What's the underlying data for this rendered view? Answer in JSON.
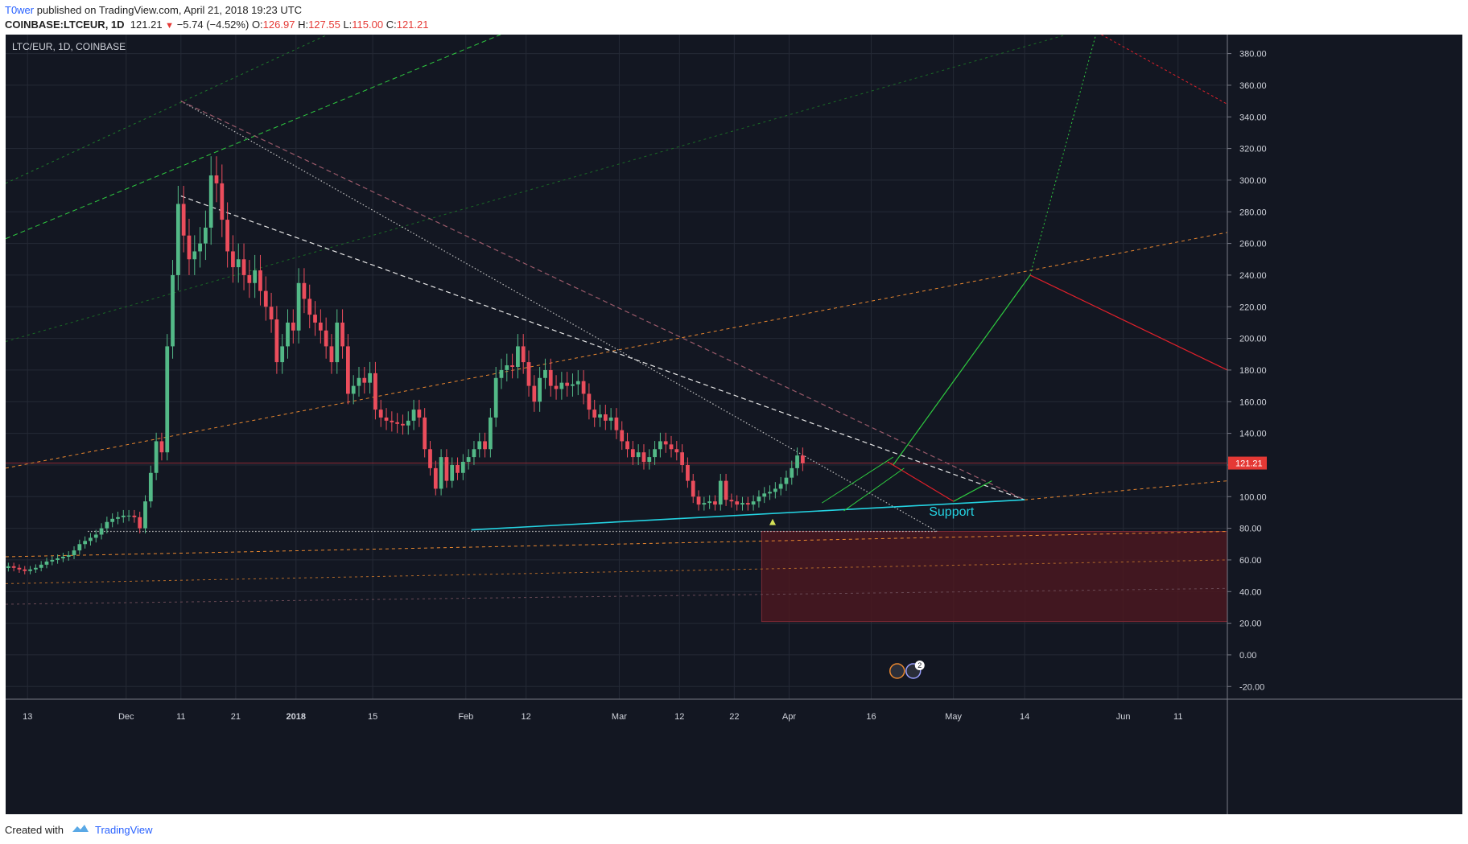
{
  "header": {
    "author": "T0wer",
    "published_text": "published on TradingView.com, April 21, 2018 19:23 UTC",
    "symbol": "COINBASE:LTCEUR, 1D",
    "last": "121.21",
    "change": "−5.74 (−4.52%)",
    "open_label": "O:",
    "open": "126.97",
    "high_label": "H:",
    "high": "127.55",
    "low_label": "L:",
    "low": "115.00",
    "close_label": "C:",
    "close": "121.21"
  },
  "legend": {
    "title": "LTC/EUR, 1D, COINBASE"
  },
  "colors": {
    "background": "#131722",
    "grid": "#252a36",
    "up": "#53b987",
    "down": "#eb4d5c",
    "support": "#24d3e2",
    "green_projection": "#2ecc40",
    "red_projection": "#e0202a",
    "orange_channel": "#e9872f",
    "zone": "#4a1820"
  },
  "annotations": {
    "support_label": "Support",
    "price_tag": "121.21",
    "event_badge_count": "2"
  },
  "footer": {
    "created_with": "Created with",
    "brand": "TradingView"
  },
  "chart_data": {
    "type": "candlestick",
    "symbol": "LTC/EUR",
    "timeframe": "1D",
    "exchange": "COINBASE",
    "x_ticks": [
      {
        "label": "13",
        "date": "2017-11-13"
      },
      {
        "label": "Dec",
        "date": "2017-12-01"
      },
      {
        "label": "11",
        "date": "2017-12-11"
      },
      {
        "label": "21",
        "date": "2017-12-21"
      },
      {
        "label": "2018",
        "date": "2018-01-01"
      },
      {
        "label": "15",
        "date": "2018-01-15"
      },
      {
        "label": "Feb",
        "date": "2018-02-01"
      },
      {
        "label": "12",
        "date": "2018-02-12"
      },
      {
        "label": "Mar",
        "date": "2018-03-01"
      },
      {
        "label": "12",
        "date": "2018-03-12"
      },
      {
        "label": "22",
        "date": "2018-03-22"
      },
      {
        "label": "Apr",
        "date": "2018-04-01"
      },
      {
        "label": "16",
        "date": "2018-04-16"
      },
      {
        "label": "May",
        "date": "2018-05-01"
      },
      {
        "label": "14",
        "date": "2018-05-14"
      },
      {
        "label": "Jun",
        "date": "2018-06-01"
      },
      {
        "label": "11",
        "date": "2018-06-11"
      }
    ],
    "y_ticks": [
      "380.00",
      "360.00",
      "340.00",
      "320.00",
      "300.00",
      "280.00",
      "260.00",
      "240.00",
      "220.00",
      "200.00",
      "180.00",
      "160.00",
      "140.00",
      "120.00",
      "100.00",
      "80.00",
      "60.00",
      "40.00",
      "20.00",
      "0.00",
      "-20.00"
    ],
    "x_range": [
      "2017-11-09",
      "2018-06-20"
    ],
    "ylim": [
      -28,
      392
    ],
    "grid": true,
    "current_price": 121.21,
    "closes": [
      56,
      55,
      54,
      53,
      54,
      55,
      57,
      59,
      60,
      61,
      62,
      63,
      66,
      70,
      72,
      74,
      76,
      80,
      84,
      86,
      87,
      88,
      88,
      87,
      80,
      97,
      115,
      135,
      128,
      195,
      240,
      285,
      265,
      250,
      255,
      260,
      270,
      303,
      298,
      275,
      255,
      245,
      250,
      240,
      235,
      243,
      230,
      220,
      212,
      185,
      195,
      210,
      205,
      235,
      225,
      215,
      210,
      205,
      195,
      185,
      210,
      195,
      165,
      170,
      175,
      172,
      178,
      155,
      150,
      148,
      147,
      146,
      145,
      148,
      155,
      150,
      130,
      118,
      105,
      125,
      110,
      120,
      115,
      122,
      125,
      130,
      135,
      130,
      150,
      175,
      180,
      183,
      182,
      195,
      185,
      170,
      160,
      175,
      180,
      170,
      168,
      172,
      170,
      171,
      173,
      165,
      155,
      150,
      152,
      148,
      150,
      142,
      135,
      130,
      125,
      128,
      122,
      125,
      130,
      135,
      133,
      130,
      128,
      120,
      110,
      100,
      95,
      96,
      97,
      95,
      110,
      98,
      97,
      95,
      96,
      95,
      97,
      100,
      102,
      103,
      105,
      108,
      112,
      118,
      126,
      121
    ],
    "trend_lines": [
      {
        "name": "",
        "from": [
          "2017-12-11",
          350
        ],
        "to": [
          "2018-04-28",
          78
        ],
        "style": "dotted",
        "color": "#c0c0c0"
      },
      {
        "name": "",
        "from": [
          "2017-12-11",
          290
        ],
        "to": [
          "2018-05-14",
          98
        ],
        "style": "dashed",
        "color": "#e6e6e6"
      },
      {
        "name": "",
        "from": [
          "2017-12-11",
          350
        ],
        "to": [
          "2018-05-14",
          98
        ],
        "style": "dashed",
        "color": "#9a5a6a"
      },
      {
        "name": "",
        "from": [
          "2018-02-02",
          79
        ],
        "to": [
          "2018-05-14",
          98
        ],
        "style": "solid",
        "color": "#24d3e2"
      },
      {
        "name": "",
        "from": [
          "2017-11-24",
          78
        ],
        "to": [
          "2018-04-28",
          78
        ],
        "style": "dotted",
        "color": "#c0c0c0"
      }
    ],
    "projection": [
      {
        "date": "2018-04-20",
        "price": 120
      },
      {
        "date": "2018-05-15",
        "price": 240
      },
      {
        "date": "2018-05-27",
        "price": 392
      }
    ],
    "zone": {
      "from": "2018-03-27",
      "to": "2018-06-20",
      "low": 21,
      "high": 78
    }
  }
}
